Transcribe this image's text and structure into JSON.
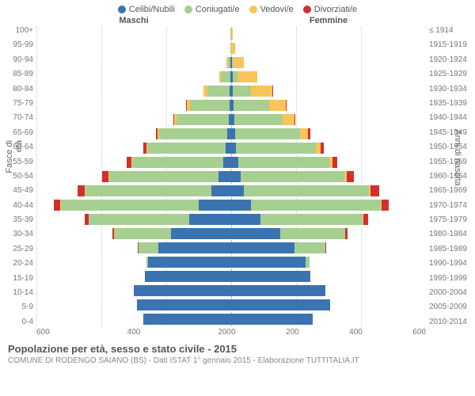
{
  "legend": [
    {
      "label": "Celibi/Nubili",
      "color": "#3b73b0"
    },
    {
      "label": "Coniugati/e",
      "color": "#a6cf91"
    },
    {
      "label": "Vedovi/e",
      "color": "#f9c55a"
    },
    {
      "label": "Divorziati/e",
      "color": "#d22f2f"
    }
  ],
  "header": {
    "maschi": "Maschi",
    "femmine": "Femmine"
  },
  "axis_left_label": "Fasce di età",
  "axis_right_label": "Anni di nascita",
  "y_left_ticks": [
    "100+",
    "95-99",
    "90-94",
    "85-89",
    "80-84",
    "75-79",
    "70-74",
    "65-69",
    "60-64",
    "55-59",
    "50-54",
    "45-49",
    "40-44",
    "35-39",
    "30-34",
    "25-29",
    "20-24",
    "15-19",
    "10-14",
    "5-9",
    "0-4"
  ],
  "y_right_ticks": [
    "≤ 1914",
    "1915-1919",
    "1920-1924",
    "1925-1929",
    "1930-1934",
    "1935-1939",
    "1940-1944",
    "1945-1949",
    "1950-1954",
    "1955-1959",
    "1960-1964",
    "1965-1969",
    "1970-1974",
    "1975-1979",
    "1980-1984",
    "1985-1989",
    "1990-1994",
    "1995-1999",
    "2000-2004",
    "2005-2009",
    "2010-2014"
  ],
  "x_max": 600,
  "x_ticks": [
    0,
    200,
    400,
    600
  ],
  "series_colors": {
    "celibi": "#3b73b0",
    "coniugati": "#a6cf91",
    "vedovi": "#f9c55a",
    "divorziati": "#d22f2f"
  },
  "plot_bg": "#ffffff",
  "grid_color": "#cccccc",
  "rows": [
    {
      "m": {
        "c": 0,
        "k": 2,
        "v": 0,
        "d": 0
      },
      "f": {
        "c": 1,
        "k": 0,
        "v": 5,
        "d": 0
      }
    },
    {
      "m": {
        "c": 0,
        "k": 2,
        "v": 1,
        "d": 0
      },
      "f": {
        "c": 1,
        "k": 0,
        "v": 12,
        "d": 0
      }
    },
    {
      "m": {
        "c": 3,
        "k": 8,
        "v": 4,
        "d": 0
      },
      "f": {
        "c": 3,
        "k": 2,
        "v": 35,
        "d": 0
      }
    },
    {
      "m": {
        "c": 3,
        "k": 28,
        "v": 6,
        "d": 0
      },
      "f": {
        "c": 5,
        "k": 15,
        "v": 60,
        "d": 0
      }
    },
    {
      "m": {
        "c": 4,
        "k": 70,
        "v": 11,
        "d": 0
      },
      "f": {
        "c": 6,
        "k": 55,
        "v": 65,
        "d": 2
      }
    },
    {
      "m": {
        "c": 6,
        "k": 120,
        "v": 11,
        "d": 2
      },
      "f": {
        "c": 8,
        "k": 110,
        "v": 50,
        "d": 3
      }
    },
    {
      "m": {
        "c": 8,
        "k": 160,
        "v": 8,
        "d": 3
      },
      "f": {
        "c": 9,
        "k": 150,
        "v": 35,
        "d": 4
      }
    },
    {
      "m": {
        "c": 12,
        "k": 210,
        "v": 5,
        "d": 5
      },
      "f": {
        "c": 12,
        "k": 200,
        "v": 25,
        "d": 6
      }
    },
    {
      "m": {
        "c": 18,
        "k": 240,
        "v": 3,
        "d": 10
      },
      "f": {
        "c": 15,
        "k": 245,
        "v": 15,
        "d": 10
      }
    },
    {
      "m": {
        "c": 25,
        "k": 280,
        "v": 2,
        "d": 15
      },
      "f": {
        "c": 22,
        "k": 280,
        "v": 10,
        "d": 14
      }
    },
    {
      "m": {
        "c": 40,
        "k": 335,
        "v": 2,
        "d": 20
      },
      "f": {
        "c": 30,
        "k": 320,
        "v": 7,
        "d": 20
      }
    },
    {
      "m": {
        "c": 60,
        "k": 390,
        "v": 1,
        "d": 22
      },
      "f": {
        "c": 40,
        "k": 385,
        "v": 5,
        "d": 25
      }
    },
    {
      "m": {
        "c": 100,
        "k": 425,
        "v": 1,
        "d": 20
      },
      "f": {
        "c": 60,
        "k": 400,
        "v": 3,
        "d": 22
      }
    },
    {
      "m": {
        "c": 130,
        "k": 310,
        "v": 0,
        "d": 12
      },
      "f": {
        "c": 90,
        "k": 315,
        "v": 2,
        "d": 15
      }
    },
    {
      "m": {
        "c": 185,
        "k": 175,
        "v": 0,
        "d": 5
      },
      "f": {
        "c": 150,
        "k": 200,
        "v": 0,
        "d": 8
      }
    },
    {
      "m": {
        "c": 225,
        "k": 60,
        "v": 0,
        "d": 2
      },
      "f": {
        "c": 195,
        "k": 95,
        "v": 0,
        "d": 2
      }
    },
    {
      "m": {
        "c": 255,
        "k": 6,
        "v": 0,
        "d": 0
      },
      "f": {
        "c": 230,
        "k": 12,
        "v": 0,
        "d": 0
      }
    },
    {
      "m": {
        "c": 265,
        "k": 0,
        "v": 0,
        "d": 0
      },
      "f": {
        "c": 245,
        "k": 0,
        "v": 0,
        "d": 0
      }
    },
    {
      "m": {
        "c": 300,
        "k": 0,
        "v": 0,
        "d": 0
      },
      "f": {
        "c": 290,
        "k": 0,
        "v": 0,
        "d": 0
      }
    },
    {
      "m": {
        "c": 290,
        "k": 0,
        "v": 0,
        "d": 0
      },
      "f": {
        "c": 305,
        "k": 0,
        "v": 0,
        "d": 0
      }
    },
    {
      "m": {
        "c": 270,
        "k": 0,
        "v": 0,
        "d": 0
      },
      "f": {
        "c": 250,
        "k": 0,
        "v": 0,
        "d": 0
      }
    }
  ],
  "footer": {
    "title": "Popolazione per età, sesso e stato civile - 2015",
    "subtitle": "COMUNE DI RODENGO SAIANO (BS) - Dati ISTAT 1° gennaio 2015 - Elaborazione TUTTITALIA.IT"
  }
}
